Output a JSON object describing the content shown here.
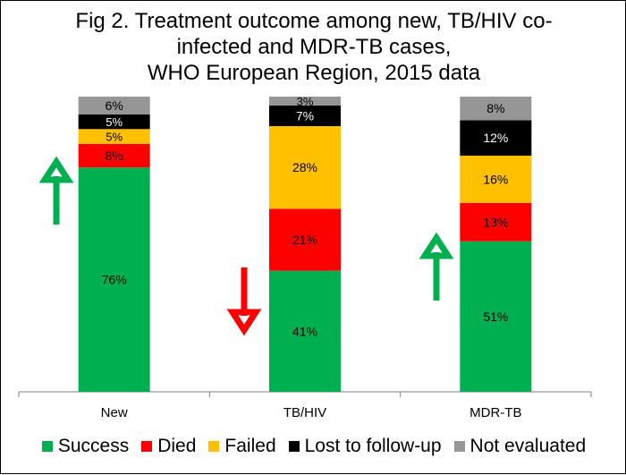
{
  "chart_data": {
    "type": "bar",
    "stacked": true,
    "title_lines": [
      "Fig 2. Treatment outcome among new, TB/HIV co-",
      "infected and MDR-TB cases,",
      "WHO European Region, 2015 data"
    ],
    "categories": [
      "New",
      "TB/HIV",
      "MDR-TB"
    ],
    "series": [
      {
        "name": "Success",
        "color": "#00b050",
        "values": [
          76,
          41,
          51
        ],
        "labels": [
          "76%",
          "41%",
          "51%"
        ]
      },
      {
        "name": "Died",
        "color": "#ff0000",
        "values": [
          8,
          21,
          13
        ],
        "labels": [
          "8%",
          "21%",
          "13%"
        ]
      },
      {
        "name": "Failed",
        "color": "#ffc000",
        "values": [
          5,
          28,
          16
        ],
        "labels": [
          "5%",
          "28%",
          "16%"
        ]
      },
      {
        "name": "Lost to follow-up",
        "color": "#000000",
        "values": [
          5,
          7,
          12
        ],
        "labels": [
          "5%",
          "7%",
          "12%"
        ]
      },
      {
        "name": "Not evaluated",
        "color": "#969696",
        "values": [
          6,
          3,
          8
        ],
        "labels": [
          "6%",
          "3%",
          "8%"
        ]
      }
    ],
    "ylim": [
      0,
      100
    ],
    "grid": false,
    "legend_position": "bottom",
    "annotations": [
      {
        "category": "New",
        "symbol": "arrow-up",
        "color": "#00b050"
      },
      {
        "category": "TB/HIV",
        "symbol": "arrow-down",
        "color": "#ff0000"
      },
      {
        "category": "MDR-TB",
        "symbol": "arrow-up",
        "color": "#00b050"
      }
    ]
  }
}
